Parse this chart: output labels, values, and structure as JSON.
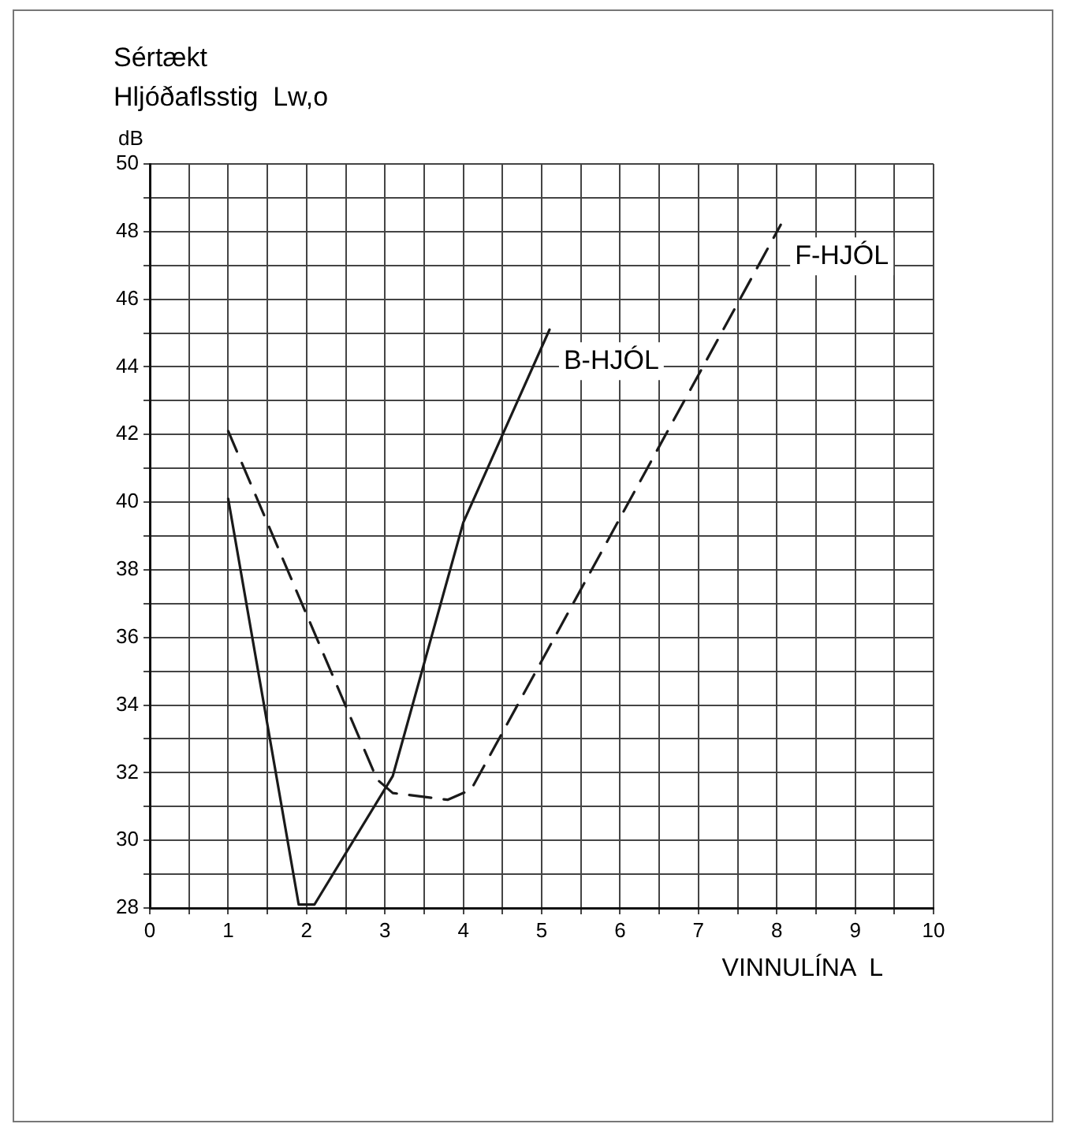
{
  "chart_data": {
    "type": "line",
    "title": "Sértækt",
    "subtitle": "Hljóðaflsstig  Lw,o",
    "ylabel": "dB",
    "xlabel": "VINNULÍNA  L",
    "xlim": [
      0,
      10
    ],
    "xticks": [
      0,
      {
        "value": 0.5,
        "label": null
      },
      1,
      {
        "value": 1.5,
        "label": null
      },
      2,
      {
        "value": 2.5,
        "label": null
      },
      3,
      {
        "value": 3.5,
        "label": null
      },
      4,
      {
        "value": 4.5,
        "label": null
      },
      5,
      {
        "value": 5.5,
        "label": null
      },
      6,
      {
        "value": 6.5,
        "label": null
      },
      7,
      {
        "value": 7.5,
        "label": null
      },
      8,
      {
        "value": 8.5,
        "label": null
      },
      9,
      {
        "value": 9.5,
        "label": null
      },
      10
    ],
    "ylim": [
      28,
      50
    ],
    "yticks": [
      28,
      {
        "value": 29,
        "label": null
      },
      30,
      {
        "value": 31,
        "label": null
      },
      32,
      {
        "value": 33,
        "label": null
      },
      34,
      {
        "value": 35,
        "label": null
      },
      36,
      {
        "value": 37,
        "label": null
      },
      38,
      {
        "value": 39,
        "label": null
      },
      40,
      {
        "value": 41,
        "label": null
      },
      42,
      {
        "value": 43,
        "label": null
      },
      44,
      {
        "value": 45,
        "label": null
      },
      46,
      {
        "value": 47,
        "label": null
      },
      48,
      {
        "value": 49,
        "label": null
      },
      50
    ],
    "grid": true,
    "marker": "none",
    "legend": false,
    "series": [
      {
        "name": "B-HJÓL",
        "color": "#1a1a1a",
        "line_style": "solid",
        "x": [
          1,
          1.9,
          2.1,
          3.1,
          4,
          5.1
        ],
        "values": [
          40.1,
          28.1,
          28.1,
          31.9,
          39.4,
          45.1
        ]
      },
      {
        "name": "F-HJÓL",
        "color": "#1a1a1a",
        "line_style": "dashed",
        "x": [
          1,
          2.9,
          3.1,
          3.8,
          4.1,
          8.05
        ],
        "values": [
          42.1,
          31.8,
          31.4,
          31.2,
          31.5,
          48.2
        ]
      }
    ]
  }
}
